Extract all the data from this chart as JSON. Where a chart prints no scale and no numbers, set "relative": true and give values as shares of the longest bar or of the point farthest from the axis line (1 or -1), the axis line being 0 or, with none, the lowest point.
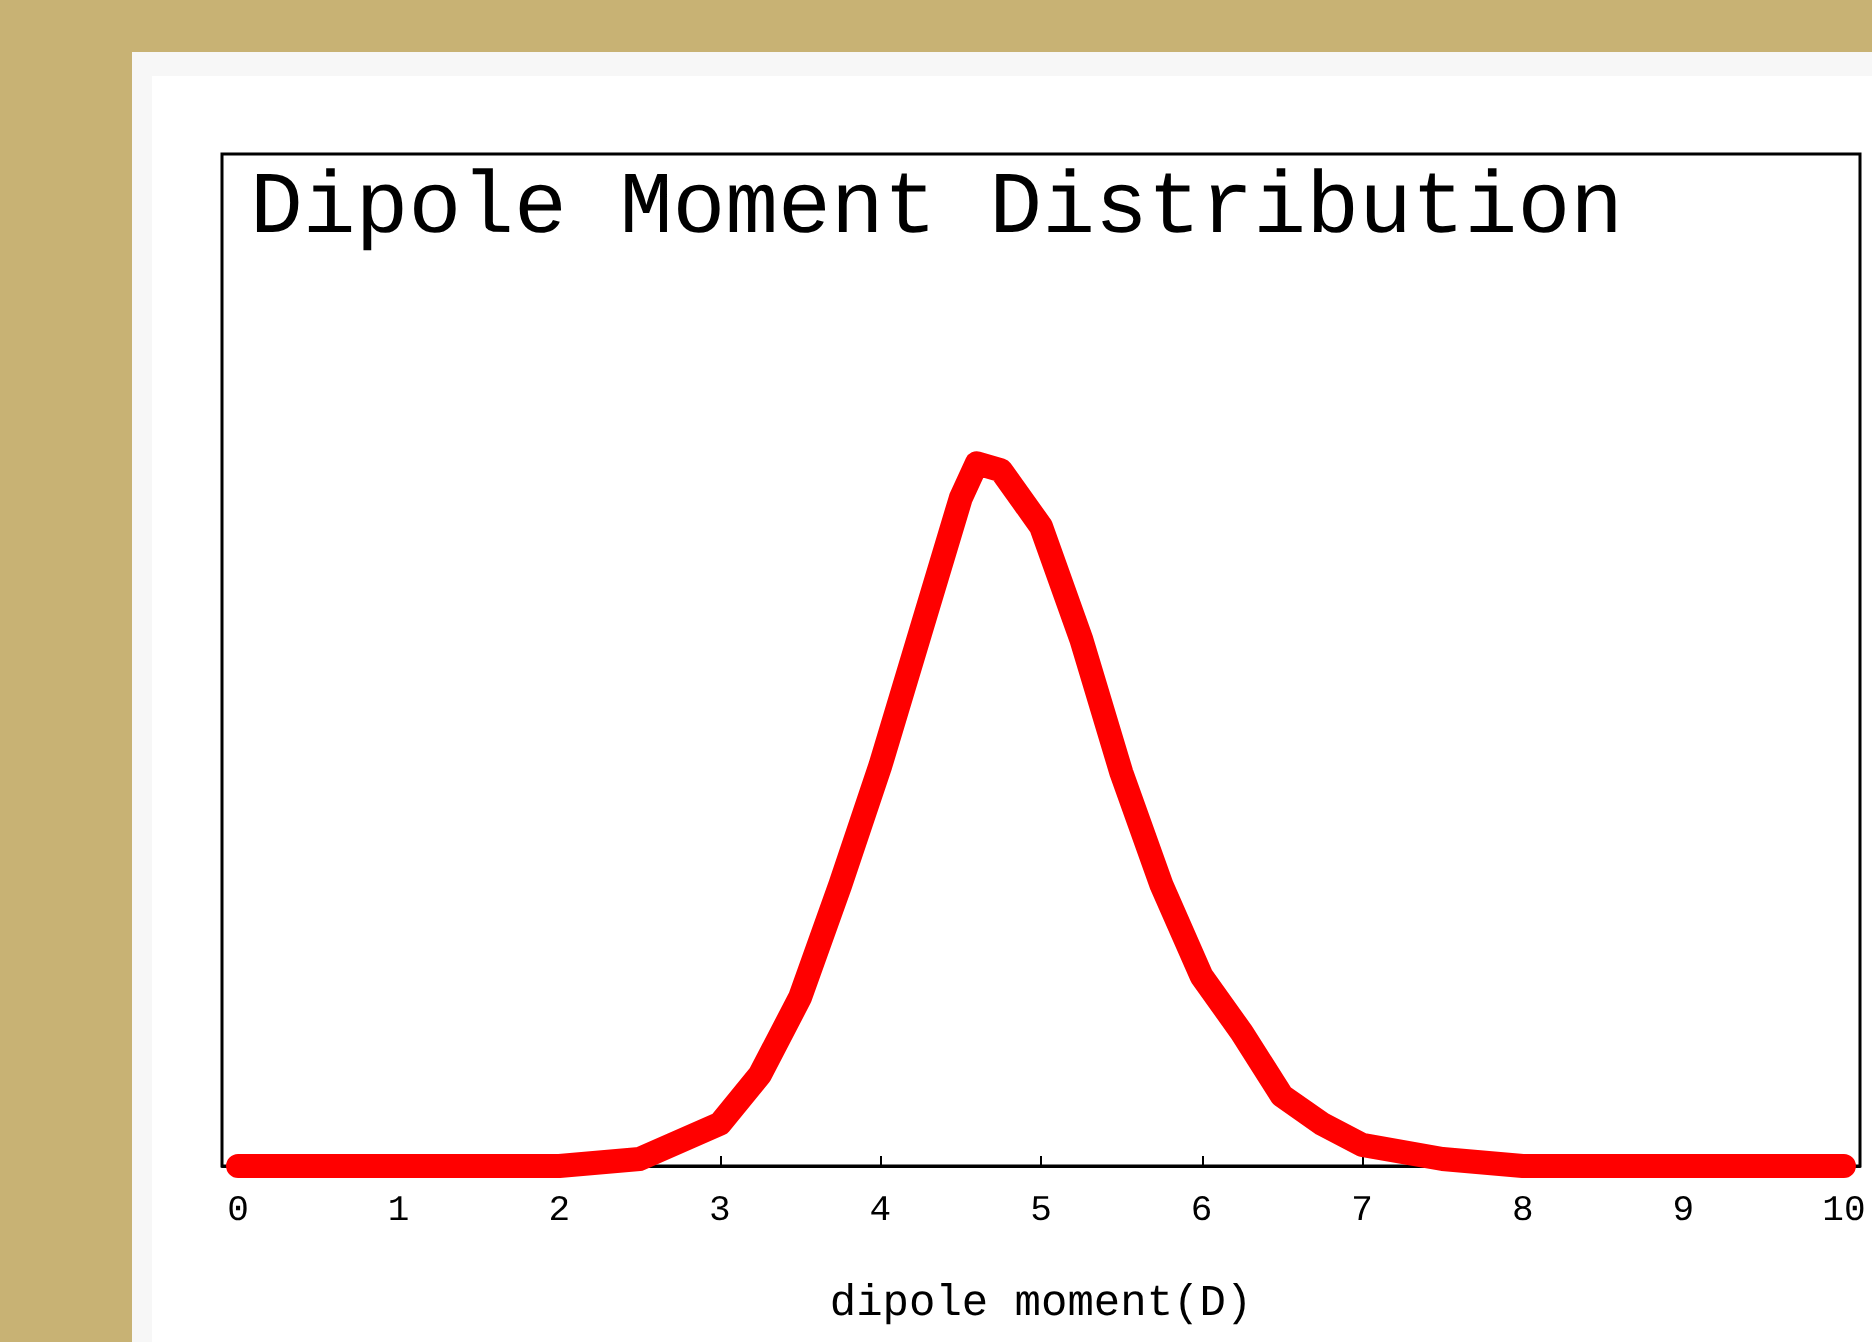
{
  "chart_data": {
    "type": "line",
    "title": "Dipole Moment Distribution",
    "xlabel": "dipole moment(D)",
    "relative": true,
    "xlim": [
      -0.1,
      10.1
    ],
    "xticks": [
      0,
      1,
      2,
      3,
      4,
      5,
      6,
      7,
      8,
      9,
      10
    ],
    "grid": false,
    "line_style": "solid",
    "x": [
      0,
      1,
      2,
      2.5,
      3,
      3.25,
      3.5,
      3.75,
      4,
      4.25,
      4.5,
      4.6,
      4.75,
      5,
      5.25,
      5.5,
      5.75,
      6,
      6.25,
      6.5,
      6.75,
      7,
      7.5,
      8,
      9,
      10
    ],
    "series": [
      {
        "color": "#ff0000",
        "values": [
          0,
          0,
          0,
          0.01,
          0.06,
          0.13,
          0.24,
          0.4,
          0.57,
          0.76,
          0.95,
          1,
          0.99,
          0.91,
          0.75,
          0.56,
          0.4,
          0.27,
          0.19,
          0.1,
          0.06,
          0.03,
          0.01,
          0,
          0,
          0
        ]
      }
    ]
  }
}
